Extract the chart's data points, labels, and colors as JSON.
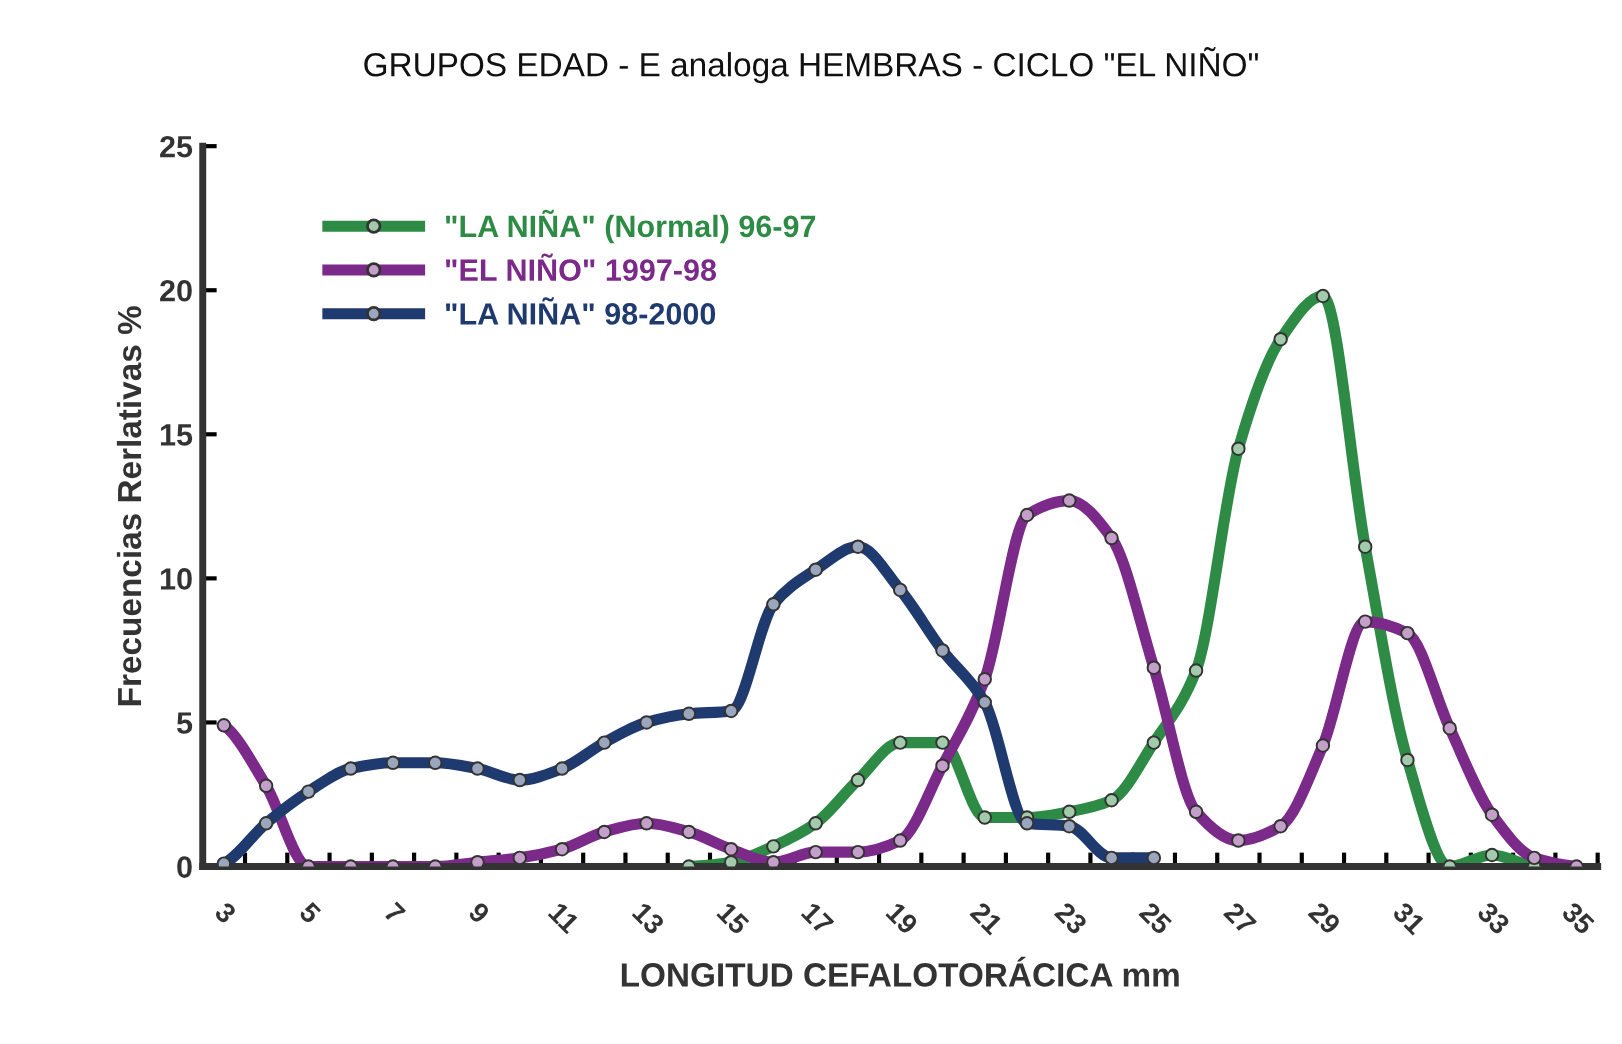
{
  "chart_data": {
    "type": "line",
    "title": "GRUPOS EDAD - E analoga HEMBRAS - CICLO \"EL NIÑO\"",
    "xlabel": "LONGITUD CEFALOTORÁCICA mm",
    "ylabel": "Frecuencias Rerlativas %",
    "categories": [
      "3",
      null,
      "5",
      null,
      "7",
      null,
      "9",
      null,
      "11",
      null,
      "13",
      null,
      "15",
      null,
      "17",
      null,
      "19",
      null,
      "21",
      null,
      "23",
      null,
      "25",
      null,
      "27",
      null,
      "29",
      null,
      "31",
      null,
      "33",
      null,
      "35"
    ],
    "series": [
      {
        "name": "\"LA NIÑA\" (Normal) 96-97",
        "color": "#2e8b45",
        "values": [
          null,
          null,
          null,
          null,
          null,
          null,
          null,
          null,
          null,
          null,
          null,
          0,
          0.15,
          0.7,
          1.5,
          3.0,
          4.3,
          4.3,
          1.7,
          1.7,
          1.9,
          2.3,
          4.3,
          6.8,
          14.5,
          18.3,
          19.8,
          11.1,
          3.7,
          0,
          0.4,
          0,
          null
        ]
      },
      {
        "name": "\"EL NIÑO\" 1997-98",
        "color": "#7b2a8a",
        "values": [
          4.9,
          2.8,
          0,
          0,
          0,
          0,
          0.15,
          0.3,
          0.6,
          1.2,
          1.5,
          1.2,
          0.6,
          0.15,
          0.5,
          0.5,
          0.9,
          3.5,
          6.5,
          12.2,
          12.7,
          11.4,
          6.9,
          1.9,
          0.9,
          1.4,
          4.2,
          8.5,
          8.1,
          4.8,
          1.8,
          0.3,
          0
        ]
      },
      {
        "name": "\"LA NIÑA\" 98-2000",
        "color": "#1f3a6e",
        "values": [
          0.1,
          1.5,
          2.6,
          3.4,
          3.6,
          3.6,
          3.4,
          3.0,
          3.4,
          4.3,
          5.0,
          5.3,
          5.4,
          9.1,
          10.3,
          11.1,
          9.6,
          7.5,
          5.7,
          1.5,
          1.4,
          0.3,
          0.3,
          null,
          null,
          null,
          null,
          null,
          null,
          null,
          null,
          null,
          null
        ]
      }
    ],
    "ylim": [
      0,
      25
    ],
    "yticks": [
      0,
      5,
      10,
      15,
      20,
      25
    ],
    "grid": false,
    "legend": "top left",
    "marker": "circle",
    "line_style": "solid"
  }
}
